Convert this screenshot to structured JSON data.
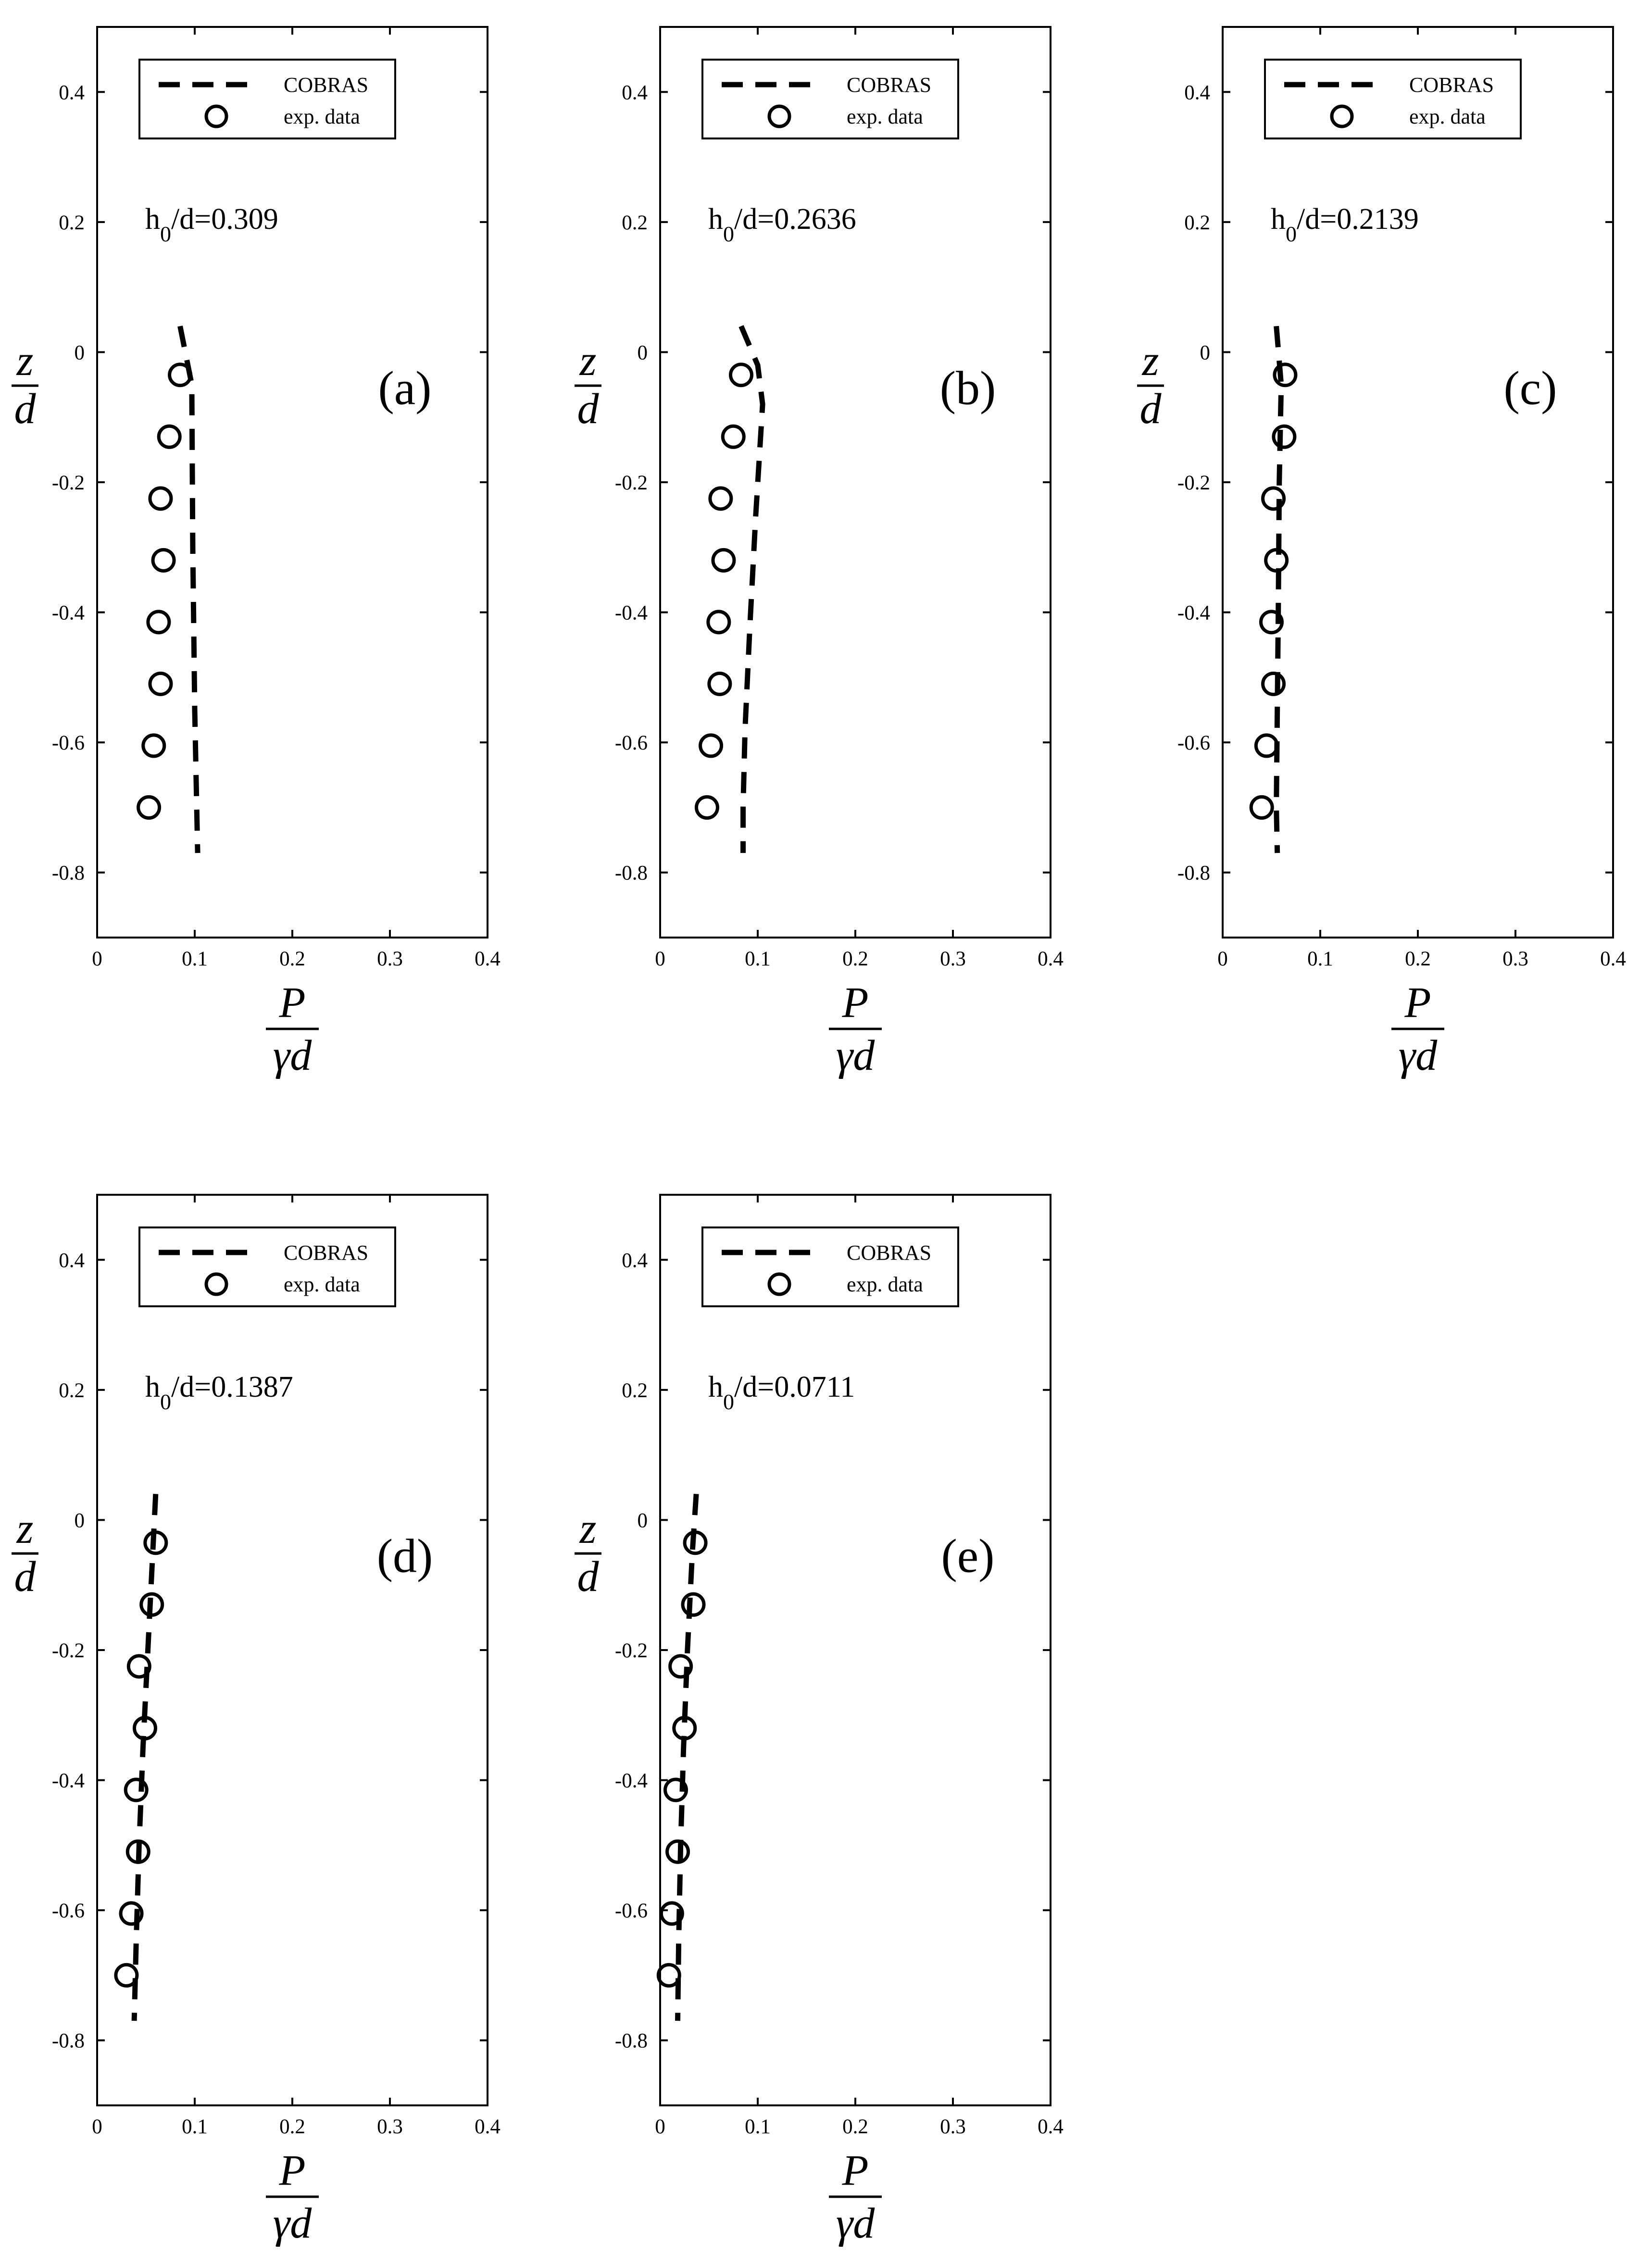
{
  "chart_data": [
    {
      "type": "line",
      "panel_label": "(a)",
      "annotation": {
        "base": "h",
        "sub": "0",
        "rest": "/d=0.309"
      },
      "xlim": [
        0,
        0.4
      ],
      "ylim": [
        -0.9,
        0.5
      ],
      "x_ticks": [
        0,
        0.1,
        0.2,
        0.3,
        0.4
      ],
      "x_tick_labels": [
        "0",
        "0.1",
        "0.2",
        "0.3",
        "0.4"
      ],
      "y_ticks": [
        -0.8,
        -0.6,
        -0.4,
        -0.2,
        0,
        0.2,
        0.4
      ],
      "y_tick_labels": [
        "-0.8",
        "-0.6",
        "-0.4",
        "-0.2",
        "0",
        "0.2",
        "0.4"
      ],
      "xlabel": {
        "numerator": "P",
        "denominator": "γd"
      },
      "ylabel": {
        "numerator": "z",
        "denominator": "d"
      },
      "legend": {
        "placement": "top-left"
      },
      "series": [
        {
          "name": "COBRAS",
          "style": "dashed",
          "x": [
            0.085,
            0.097,
            0.098,
            0.1,
            0.103
          ],
          "y": [
            0.04,
            -0.05,
            -0.3,
            -0.55,
            -0.77
          ]
        },
        {
          "name": "exp. data",
          "style": "circle",
          "x": [
            0.085,
            0.074,
            0.065,
            0.068,
            0.063,
            0.065,
            0.058,
            0.053
          ],
          "y": [
            -0.035,
            -0.13,
            -0.225,
            -0.32,
            -0.415,
            -0.51,
            -0.605,
            -0.7
          ]
        }
      ]
    },
    {
      "type": "line",
      "panel_label": "(b)",
      "annotation": {
        "base": "h",
        "sub": "0",
        "rest": "/d=0.2636"
      },
      "xlim": [
        0,
        0.4
      ],
      "ylim": [
        -0.9,
        0.5
      ],
      "x_ticks": [
        0,
        0.1,
        0.2,
        0.3,
        0.4
      ],
      "x_tick_labels": [
        "0",
        "0.1",
        "0.2",
        "0.3",
        "0.4"
      ],
      "y_ticks": [
        -0.8,
        -0.6,
        -0.4,
        -0.2,
        0,
        0.2,
        0.4
      ],
      "y_tick_labels": [
        "-0.8",
        "-0.6",
        "-0.4",
        "-0.2",
        "0",
        "0.2",
        "0.4"
      ],
      "xlabel": {
        "numerator": "P",
        "denominator": "γd"
      },
      "ylabel": {
        "numerator": "z",
        "denominator": "d"
      },
      "legend": {
        "placement": "top-left"
      },
      "series": [
        {
          "name": "COBRAS",
          "style": "dashed",
          "x": [
            0.083,
            0.1,
            0.105,
            0.098,
            0.092,
            0.087,
            0.085,
            0.085
          ],
          "y": [
            0.04,
            -0.02,
            -0.08,
            -0.25,
            -0.42,
            -0.58,
            -0.7,
            -0.77
          ]
        },
        {
          "name": "exp. data",
          "style": "circle",
          "x": [
            0.083,
            0.075,
            0.062,
            0.065,
            0.06,
            0.061,
            0.052,
            0.048
          ],
          "y": [
            -0.035,
            -0.13,
            -0.225,
            -0.32,
            -0.415,
            -0.51,
            -0.605,
            -0.7
          ]
        }
      ]
    },
    {
      "type": "line",
      "panel_label": "(c)",
      "annotation": {
        "base": "h",
        "sub": "0",
        "rest": "/d=0.2139"
      },
      "xlim": [
        0,
        0.4
      ],
      "ylim": [
        -0.9,
        0.5
      ],
      "x_ticks": [
        0,
        0.1,
        0.2,
        0.3,
        0.4
      ],
      "x_tick_labels": [
        "0",
        "0.1",
        "0.2",
        "0.3",
        "0.4"
      ],
      "y_ticks": [
        -0.8,
        -0.6,
        -0.4,
        -0.2,
        0,
        0.2,
        0.4
      ],
      "y_tick_labels": [
        "-0.8",
        "-0.6",
        "-0.4",
        "-0.2",
        "0",
        "0.2",
        "0.4"
      ],
      "xlabel": {
        "numerator": "P",
        "denominator": "γd"
      },
      "ylabel": {
        "numerator": "z",
        "denominator": "d"
      },
      "legend": {
        "placement": "top-left"
      },
      "series": [
        {
          "name": "COBRAS",
          "style": "dashed",
          "x": [
            0.055,
            0.06,
            0.058,
            0.057,
            0.056,
            0.055,
            0.056
          ],
          "y": [
            0.04,
            -0.05,
            -0.2,
            -0.4,
            -0.55,
            -0.7,
            -0.77
          ]
        },
        {
          "name": "exp. data",
          "style": "circle",
          "x": [
            0.064,
            0.063,
            0.052,
            0.055,
            0.05,
            0.052,
            0.045,
            0.04
          ],
          "y": [
            -0.035,
            -0.13,
            -0.225,
            -0.32,
            -0.415,
            -0.51,
            -0.605,
            -0.7
          ]
        }
      ]
    },
    {
      "type": "line",
      "panel_label": "(d)",
      "annotation": {
        "base": "h",
        "sub": "0",
        "rest": "/d=0.1387"
      },
      "xlim": [
        0,
        0.4
      ],
      "ylim": [
        -0.9,
        0.5
      ],
      "x_ticks": [
        0,
        0.1,
        0.2,
        0.3,
        0.4
      ],
      "x_tick_labels": [
        "0",
        "0.1",
        "0.2",
        "0.3",
        "0.4"
      ],
      "y_ticks": [
        -0.8,
        -0.6,
        -0.4,
        -0.2,
        0,
        0.2,
        0.4
      ],
      "y_tick_labels": [
        "-0.8",
        "-0.6",
        "-0.4",
        "-0.2",
        "0",
        "0.2",
        "0.4"
      ],
      "xlabel": {
        "numerator": "P",
        "denominator": "γd"
      },
      "ylabel": {
        "numerator": "z",
        "denominator": "d"
      },
      "legend": {
        "placement": "top-left"
      },
      "series": [
        {
          "name": "COBRAS",
          "style": "dashed",
          "x": [
            0.06,
            0.057,
            0.052,
            0.047,
            0.043,
            0.04,
            0.038
          ],
          "y": [
            0.04,
            -0.05,
            -0.2,
            -0.35,
            -0.5,
            -0.65,
            -0.77
          ]
        },
        {
          "name": "exp. data",
          "style": "circle",
          "x": [
            0.06,
            0.056,
            0.043,
            0.049,
            0.04,
            0.042,
            0.035,
            0.03
          ],
          "y": [
            -0.035,
            -0.13,
            -0.225,
            -0.32,
            -0.415,
            -0.51,
            -0.605,
            -0.7
          ]
        }
      ]
    },
    {
      "type": "line",
      "panel_label": "(e)",
      "annotation": {
        "base": "h",
        "sub": "0",
        "rest": "/d=0.0711"
      },
      "xlim": [
        0,
        0.4
      ],
      "ylim": [
        -0.9,
        0.5
      ],
      "x_ticks": [
        0,
        0.1,
        0.2,
        0.3,
        0.4
      ],
      "x_tick_labels": [
        "0",
        "0.1",
        "0.2",
        "0.3",
        "0.4"
      ],
      "y_ticks": [
        -0.8,
        -0.6,
        -0.4,
        -0.2,
        0,
        0.2,
        0.4
      ],
      "y_tick_labels": [
        "-0.8",
        "-0.6",
        "-0.4",
        "-0.2",
        "0",
        "0.2",
        "0.4"
      ],
      "xlabel": {
        "numerator": "P",
        "denominator": "γd"
      },
      "ylabel": {
        "numerator": "z",
        "denominator": "d"
      },
      "legend": {
        "placement": "top-left"
      },
      "series": [
        {
          "name": "COBRAS",
          "style": "dashed",
          "x": [
            0.037,
            0.033,
            0.028,
            0.024,
            0.021,
            0.019,
            0.018
          ],
          "y": [
            0.04,
            -0.05,
            -0.2,
            -0.35,
            -0.5,
            -0.65,
            -0.77
          ]
        },
        {
          "name": "exp. data",
          "style": "circle",
          "x": [
            0.036,
            0.034,
            0.021,
            0.025,
            0.016,
            0.018,
            0.012,
            0.009
          ],
          "y": [
            -0.035,
            -0.13,
            -0.225,
            -0.32,
            -0.415,
            -0.51,
            -0.605,
            -0.7
          ]
        }
      ]
    }
  ]
}
